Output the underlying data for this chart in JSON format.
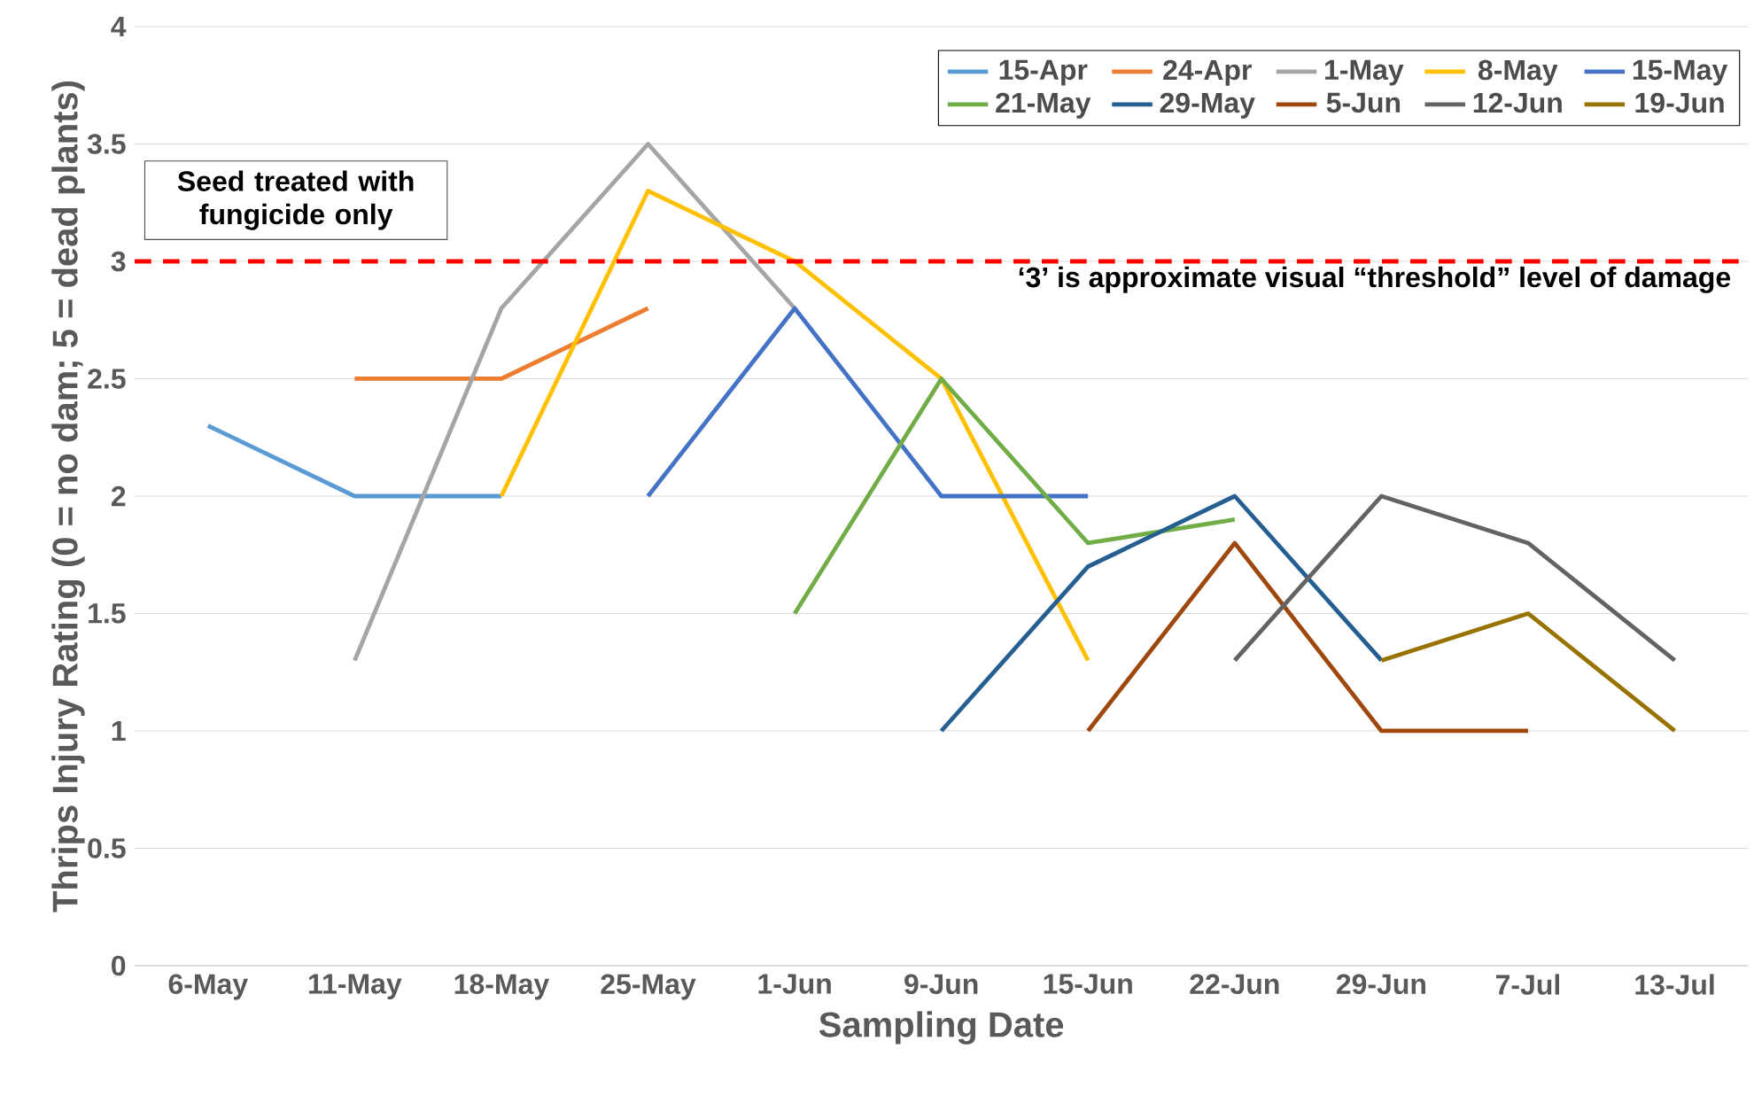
{
  "chart_data": {
    "type": "line",
    "xlabel": "Sampling Date",
    "ylabel": "Thrips Injury Rating (0 = no dam; 5 = dead plants)",
    "categories": [
      "6-May",
      "11-May",
      "18-May",
      "25-May",
      "1-Jun",
      "9-Jun",
      "15-Jun",
      "22-Jun",
      "29-Jun",
      "7-Jul",
      "13-Jul"
    ],
    "series": [
      {
        "name": "15-Apr",
        "color": "#5b9bd5",
        "values": [
          2.3,
          2,
          2,
          null,
          null,
          null,
          null,
          null,
          null,
          null,
          null
        ]
      },
      {
        "name": "24-Apr",
        "color": "#ed7d31",
        "values": [
          null,
          2.5,
          2.5,
          2.8,
          null,
          null,
          null,
          null,
          null,
          null,
          null
        ]
      },
      {
        "name": "1-May",
        "color": "#a5a5a5",
        "values": [
          null,
          1.3,
          2.8,
          3.5,
          2.8,
          null,
          null,
          null,
          null,
          null,
          null
        ]
      },
      {
        "name": "8-May",
        "color": "#ffc000",
        "values": [
          null,
          null,
          2,
          3.3,
          3,
          2.5,
          1.3,
          null,
          null,
          null,
          null
        ]
      },
      {
        "name": "15-May",
        "color": "#4472c4",
        "values": [
          null,
          null,
          null,
          2,
          2.8,
          2,
          2,
          null,
          null,
          null,
          null
        ]
      },
      {
        "name": "21-May",
        "color": "#70ad47",
        "values": [
          null,
          null,
          null,
          null,
          1.5,
          2.5,
          1.8,
          1.9,
          null,
          null,
          null
        ]
      },
      {
        "name": "29-May",
        "color": "#255e91",
        "values": [
          null,
          null,
          null,
          null,
          null,
          1,
          1.7,
          2,
          1.3,
          null,
          null
        ]
      },
      {
        "name": "5-Jun",
        "color": "#9e480e",
        "values": [
          null,
          null,
          null,
          null,
          null,
          null,
          1,
          1.8,
          1,
          1,
          null
        ]
      },
      {
        "name": "12-Jun",
        "color": "#636363",
        "values": [
          null,
          null,
          null,
          null,
          null,
          null,
          null,
          1.3,
          2,
          1.8,
          1.3
        ]
      },
      {
        "name": "19-Jun",
        "color": "#997300",
        "values": [
          null,
          null,
          null,
          null,
          null,
          null,
          null,
          null,
          1.3,
          1.5,
          1
        ]
      }
    ],
    "ylim": [
      0,
      4
    ],
    "yticks": [
      0,
      0.5,
      1,
      1.5,
      2,
      2.5,
      3,
      3.5,
      4
    ],
    "ref_lines": [
      {
        "axis": "y",
        "value": 3,
        "label": "‘3’ is approximate visual “threshold” level of damage",
        "color": "#ff0000",
        "line_style": "dashed"
      }
    ],
    "annotations": [
      "Seed treated with fungicide only"
    ],
    "grid": "y",
    "legend": "top right",
    "marker": "none",
    "line_style": "solid"
  }
}
